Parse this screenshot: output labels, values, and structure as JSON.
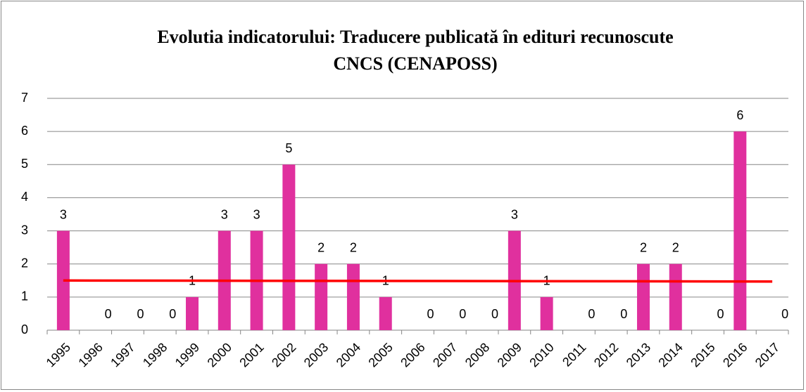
{
  "chart_data": {
    "type": "bar",
    "title": [
      "Evolutia indicatorului: Traducere publicată în edituri recunoscute",
      "CNCS (CENAPOSS)"
    ],
    "categories": [
      "1995",
      "1996",
      "1997",
      "1998",
      "1999",
      "2000",
      "2001",
      "2002",
      "2003",
      "2004",
      "2005",
      "2006",
      "2007",
      "2008",
      "2009",
      "2010",
      "2011",
      "2012",
      "2013",
      "2014",
      "2015",
      "2016",
      "2017"
    ],
    "values": [
      3,
      0,
      0,
      0,
      1,
      3,
      3,
      5,
      2,
      2,
      1,
      0,
      0,
      0,
      3,
      1,
      0,
      0,
      2,
      2,
      0,
      6,
      0
    ],
    "color": "#e0309e",
    "trendline": {
      "color": "#ff0000",
      "start": 1.5,
      "end": 1.47
    },
    "ylim": [
      0,
      7
    ],
    "yticks": [
      0,
      1,
      2,
      3,
      4,
      5,
      6,
      7
    ],
    "grid": true
  }
}
